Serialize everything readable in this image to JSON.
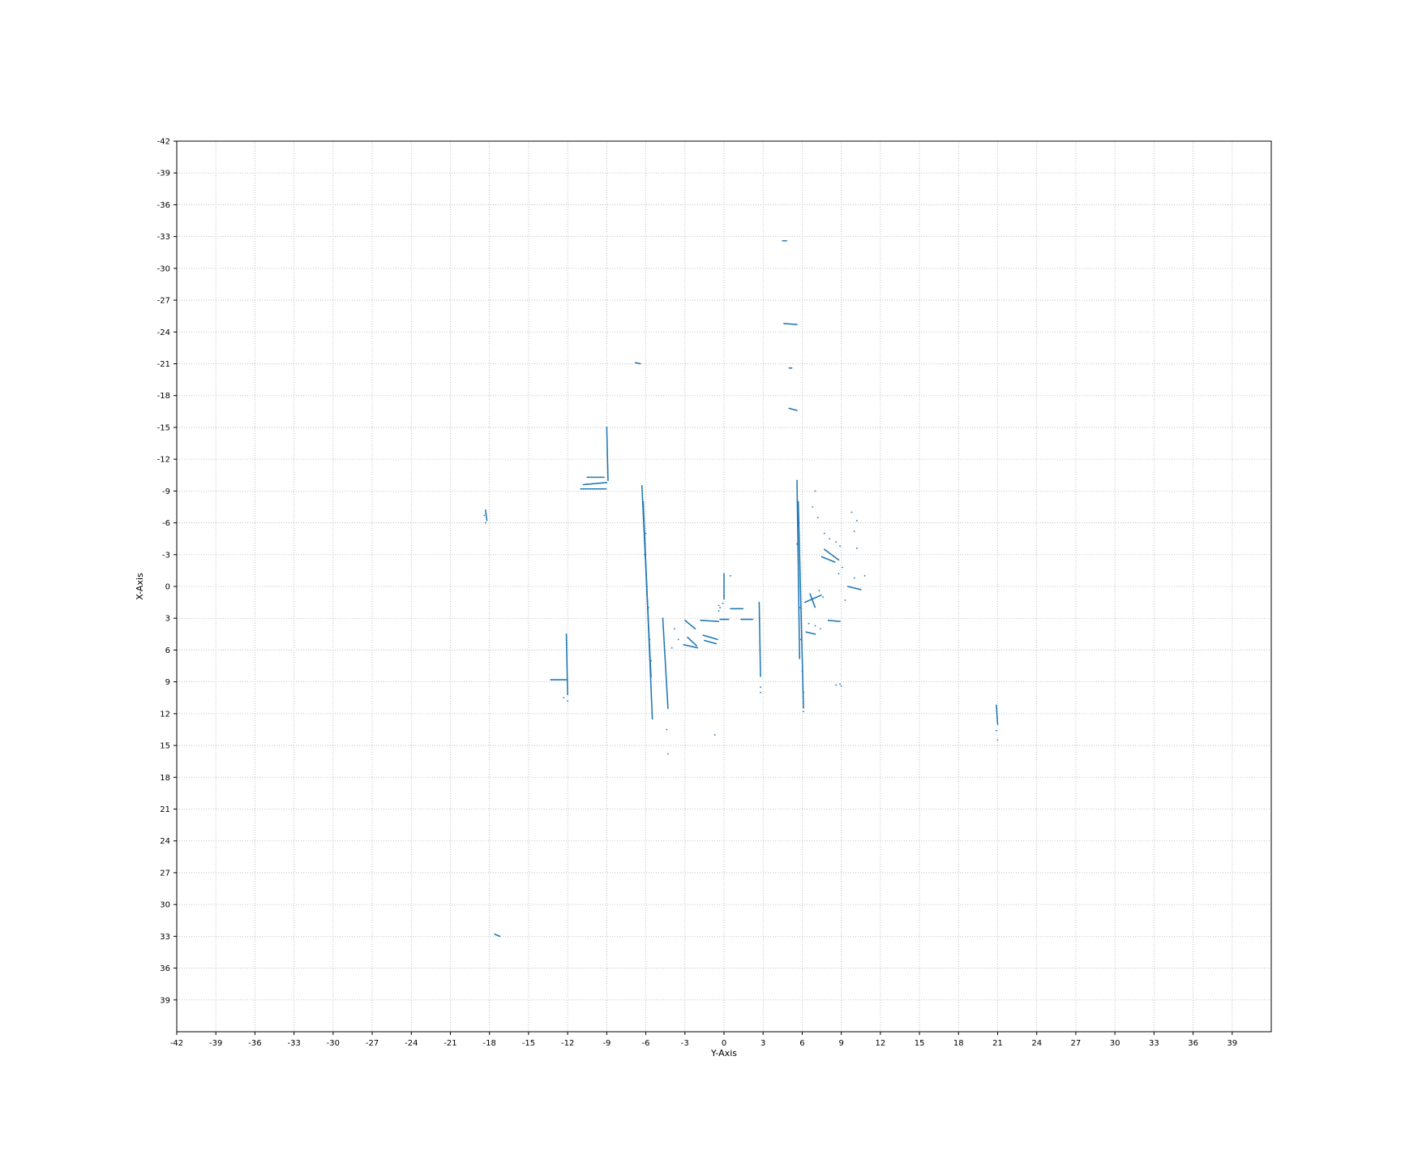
{
  "chart_data": {
    "type": "scatter",
    "title": "",
    "xlabel": "Y-Axis",
    "ylabel": "X-Axis",
    "xlim": [
      -42,
      42
    ],
    "ylim": [
      -42,
      42
    ],
    "y_inverted": true,
    "grid": true,
    "grid_style": "dotted",
    "point_color": "#1f77b4",
    "x_ticks": [
      "-42",
      "-39",
      "-36",
      "-33",
      "-30",
      "-27",
      "-24",
      "-21",
      "-18",
      "-15",
      "-12",
      "-9",
      "-6",
      "-3",
      "0",
      "3",
      "6",
      "9",
      "12",
      "15",
      "18",
      "21",
      "24",
      "27",
      "30",
      "33",
      "36",
      "39"
    ],
    "y_ticks": [
      "-42",
      "-39",
      "-36",
      "-33",
      "-30",
      "-27",
      "-24",
      "-21",
      "-18",
      "-15",
      "-12",
      "-9",
      "-6",
      "-3",
      "0",
      "3",
      "6",
      "9",
      "12",
      "15",
      "18",
      "21",
      "24",
      "27",
      "30",
      "33",
      "36",
      "39"
    ],
    "segments": [
      {
        "from": [
          -6.3,
          -9.5
        ],
        "to": [
          -5.6,
          8.6
        ]
      },
      {
        "from": [
          -6.2,
          -8.0
        ],
        "to": [
          -5.5,
          12.5
        ]
      },
      {
        "from": [
          5.6,
          -10.0
        ],
        "to": [
          5.8,
          6.8
        ]
      },
      {
        "from": [
          5.7,
          -8.0
        ],
        "to": [
          6.1,
          11.5
        ]
      },
      {
        "from": [
          -9.0,
          -15.0
        ],
        "to": [
          -8.9,
          -10.0
        ]
      },
      {
        "from": [
          -11.0,
          -9.2
        ],
        "to": [
          -9.0,
          -9.2
        ]
      },
      {
        "from": [
          -10.8,
          -9.6
        ],
        "to": [
          -9.0,
          -9.8
        ]
      },
      {
        "from": [
          -10.5,
          -10.3
        ],
        "to": [
          -9.2,
          -10.3
        ]
      },
      {
        "from": [
          -12.1,
          4.5
        ],
        "to": [
          -12.0,
          10.2
        ]
      },
      {
        "from": [
          -13.3,
          8.8
        ],
        "to": [
          -12.1,
          8.8
        ]
      },
      {
        "from": [
          0.0,
          -1.2
        ],
        "to": [
          0.0,
          1.2
        ]
      },
      {
        "from": [
          2.7,
          1.5
        ],
        "to": [
          2.8,
          8.5
        ]
      },
      {
        "from": [
          -3.0,
          3.2
        ],
        "to": [
          -2.2,
          4.0
        ]
      },
      {
        "from": [
          -2.8,
          4.8
        ],
        "to": [
          -2.1,
          5.6
        ]
      },
      {
        "from": [
          -1.6,
          4.6
        ],
        "to": [
          -0.5,
          5.0
        ]
      },
      {
        "from": [
          -1.5,
          5.1
        ],
        "to": [
          -0.6,
          5.4
        ]
      },
      {
        "from": [
          -3.1,
          5.5
        ],
        "to": [
          -2.0,
          5.8
        ]
      },
      {
        "from": [
          -1.8,
          3.2
        ],
        "to": [
          -0.4,
          3.3
        ]
      },
      {
        "from": [
          0.5,
          2.1
        ],
        "to": [
          1.5,
          2.1
        ]
      },
      {
        "from": [
          1.3,
          3.1
        ],
        "to": [
          2.2,
          3.1
        ]
      },
      {
        "from": [
          -0.3,
          3.1
        ],
        "to": [
          0.4,
          3.1
        ]
      },
      {
        "from": [
          -4.7,
          3.0
        ],
        "to": [
          -4.3,
          11.5
        ]
      },
      {
        "from": [
          4.6,
          -24.8
        ],
        "to": [
          5.6,
          -24.7
        ]
      },
      {
        "from": [
          5.0,
          -20.6
        ],
        "to": [
          5.2,
          -20.6
        ]
      },
      {
        "from": [
          5.0,
          -16.8
        ],
        "to": [
          5.6,
          -16.6
        ]
      },
      {
        "from": [
          -6.8,
          -21.1
        ],
        "to": [
          -6.4,
          -21.0
        ]
      },
      {
        "from": [
          4.5,
          -32.6
        ],
        "to": [
          4.8,
          -32.6
        ]
      },
      {
        "from": [
          -18.3,
          -7.2
        ],
        "to": [
          -18.2,
          -6.2
        ]
      },
      {
        "from": [
          20.9,
          11.2
        ],
        "to": [
          21.0,
          13.0
        ]
      },
      {
        "from": [
          -17.6,
          32.8
        ],
        "to": [
          -17.2,
          33.0
        ]
      },
      {
        "from": [
          6.2,
          1.5
        ],
        "to": [
          7.5,
          0.8
        ]
      },
      {
        "from": [
          6.6,
          0.7
        ],
        "to": [
          7.0,
          2.0
        ]
      },
      {
        "from": [
          7.7,
          -3.5
        ],
        "to": [
          8.8,
          -2.5
        ]
      },
      {
        "from": [
          7.5,
          -2.8
        ],
        "to": [
          8.5,
          -2.3
        ]
      },
      {
        "from": [
          8.0,
          3.2
        ],
        "to": [
          8.9,
          3.3
        ]
      },
      {
        "from": [
          9.5,
          0.0
        ],
        "to": [
          10.5,
          0.3
        ]
      },
      {
        "from": [
          6.3,
          4.3
        ],
        "to": [
          7.0,
          4.5
        ]
      }
    ],
    "points": [
      [
        -6.0,
        -5
      ],
      [
        -6.1,
        -3
      ],
      [
        -5.9,
        0
      ],
      [
        -5.8,
        2
      ],
      [
        -5.7,
        5
      ],
      [
        -5.6,
        7
      ],
      [
        5.7,
        -7
      ],
      [
        5.6,
        -4
      ],
      [
        5.7,
        -1
      ],
      [
        5.8,
        2
      ],
      [
        5.9,
        5
      ],
      [
        6.0,
        8
      ],
      [
        6.1,
        10
      ],
      [
        -4.4,
        13.5
      ],
      [
        -4.3,
        15.8
      ],
      [
        -0.7,
        14
      ],
      [
        0.0,
        0.9
      ],
      [
        0.5,
        -1.0
      ],
      [
        -0.3,
        2.0
      ],
      [
        -0.4,
        2.3
      ],
      [
        2.8,
        9.5
      ],
      [
        2.8,
        10.0
      ],
      [
        -3.8,
        4.0
      ],
      [
        -3.5,
        5.0
      ],
      [
        -4.0,
        5.8
      ],
      [
        7.7,
        -5.0
      ],
      [
        8.1,
        -4.5
      ],
      [
        8.6,
        -4.2
      ],
      [
        8.9,
        -3.8
      ],
      [
        7.2,
        -6.5
      ],
      [
        6.8,
        -7.5
      ],
      [
        7.0,
        -9.0
      ],
      [
        9.8,
        -7.0
      ],
      [
        10.2,
        -6.2
      ],
      [
        10.0,
        -5.2
      ],
      [
        10.2,
        -3.6
      ],
      [
        8.8,
        -1.2
      ],
      [
        9.1,
        -1.8
      ],
      [
        7.6,
        1.0
      ],
      [
        7.3,
        0.4
      ],
      [
        9.3,
        1.3
      ],
      [
        10.8,
        -1.0
      ],
      [
        10.0,
        -0.8
      ],
      [
        6.1,
        11.8
      ],
      [
        8.9,
        9.2
      ],
      [
        9.0,
        9.4
      ],
      [
        8.6,
        9.3
      ],
      [
        6.5,
        3.5
      ],
      [
        7.4,
        4.0
      ],
      [
        7.0,
        3.7
      ],
      [
        -12.3,
        10.5
      ],
      [
        -12.0,
        10.8
      ],
      [
        -18.4,
        -6.7
      ],
      [
        -18.3,
        -6.0
      ],
      [
        20.9,
        13.6
      ],
      [
        21.0,
        14.5
      ],
      [
        -0.4,
        1.8
      ],
      [
        -0.1,
        1.6
      ]
    ]
  }
}
